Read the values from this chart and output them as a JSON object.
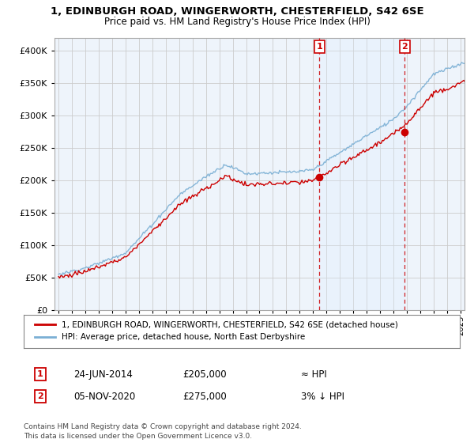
{
  "title_line1": "1, EDINBURGH ROAD, WINGERWORTH, CHESTERFIELD, S42 6SE",
  "title_line2": "Price paid vs. HM Land Registry's House Price Index (HPI)",
  "sale1_date": "24-JUN-2014",
  "sale1_price": 205000,
  "sale1_year": 2014.47,
  "sale2_date": "05-NOV-2020",
  "sale2_price": 275000,
  "sale2_year": 2020.84,
  "legend_line1": "1, EDINBURGH ROAD, WINGERWORTH, CHESTERFIELD, S42 6SE (detached house)",
  "legend_line2": "HPI: Average price, detached house, North East Derbyshire",
  "footnote": "Contains HM Land Registry data © Crown copyright and database right 2024.\nThis data is licensed under the Open Government Licence v3.0.",
  "price_line_color": "#cc0000",
  "hpi_line_color": "#7aafd4",
  "vline_color": "#cc0000",
  "shade_color": "#ddeeff",
  "grid_color": "#cccccc",
  "bg_color": "#eef4fb",
  "ylim": [
    0,
    420000
  ],
  "xlim_start": 1994.7,
  "xlim_end": 2025.3
}
